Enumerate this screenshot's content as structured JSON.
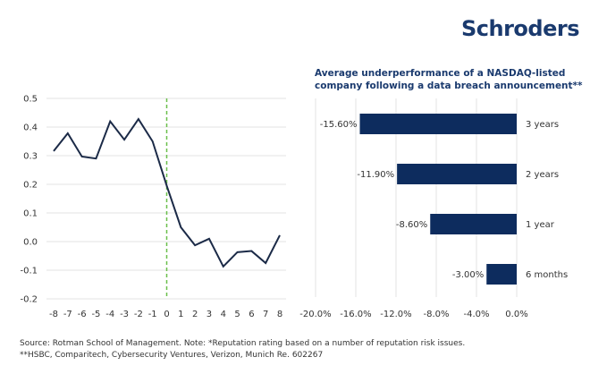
{
  "brand": {
    "logo_text": "Schroders",
    "color": "#1a3a6e"
  },
  "footer": {
    "line1": "Source: Rotman School of Management. Note: *Reputation rating based on a number of reputation risk issues.",
    "line2": "**HSBC, Comparitech, Cybersecurity Ventures, Verizon, Munich Re. 602267"
  },
  "chart_data": [
    {
      "type": "line",
      "title": "",
      "xlabel": "",
      "ylabel": "",
      "x": [
        -8,
        -7,
        -6,
        -5,
        -4,
        -3,
        -2,
        -1,
        0,
        1,
        2,
        3,
        4,
        5,
        6,
        7,
        8
      ],
      "series": [
        {
          "name": "Reputation rating",
          "color": "#1b2a47",
          "values": [
            0.316,
            0.378,
            0.297,
            0.29,
            0.42,
            0.356,
            0.428,
            0.35,
            0.195,
            0.05,
            -0.013,
            0.01,
            -0.087,
            -0.037,
            -0.033,
            -0.075,
            0.022
          ]
        }
      ],
      "ylim": [
        -0.2,
        0.5
      ],
      "yticks": [
        "0.5",
        "0.4",
        "0.3",
        "0.2",
        "0.1",
        "0.0",
        "-0.1",
        "-0.2"
      ],
      "yticks_values": [
        0.5,
        0.4,
        0.3,
        0.2,
        0.1,
        0.0,
        -0.1,
        -0.2
      ],
      "xticks": [
        "-8",
        "-7",
        "-6",
        "-5",
        "-4",
        "-3",
        "-2",
        "-1",
        "0",
        "1",
        "2",
        "3",
        "4",
        "5",
        "6",
        "7",
        "8"
      ],
      "reference_line": {
        "x": 0,
        "style": "dashed",
        "color": "#6abf4b"
      },
      "grid": true
    },
    {
      "type": "bar",
      "orientation": "horizontal",
      "title": "Average underperformance of a NASDAQ-listed company following a data breach announcement**",
      "categories": [
        "3 years",
        "2 years",
        "1 year",
        "6 months"
      ],
      "values": [
        -15.6,
        -11.9,
        -8.6,
        -3.0
      ],
      "data_labels": [
        "-15.60%",
        "-11.90%",
        "-8.60%",
        "-3.00%"
      ],
      "color": "#0d2c5e",
      "xlim": [
        -20,
        0
      ],
      "xticks": [
        "-20.0%",
        "-16.0%",
        "-12.0%",
        "-8.0%",
        "-4.0%",
        "0.0%"
      ],
      "xticks_values": [
        -20,
        -16,
        -12,
        -8,
        -4,
        0
      ],
      "grid": true
    }
  ]
}
